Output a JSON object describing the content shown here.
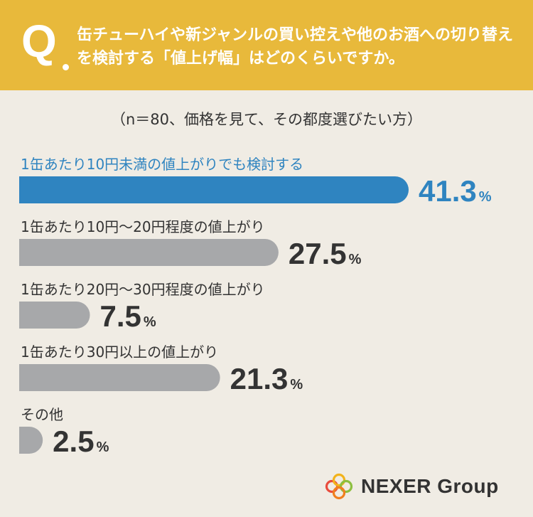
{
  "header": {
    "q_mark": "Q",
    "question": "缶チューハイや新ジャンルの買い控えや他のお酒への切り替えを検討する「値上げ幅」はどのくらいですか。"
  },
  "subtitle": "（n＝80、価格を見て、その都度選びたい方）",
  "colors": {
    "highlight": "#2f84c0",
    "bar": "#a7a8aa",
    "header_bg": "#e8b93b",
    "background": "#f0ece4"
  },
  "chart_data": {
    "type": "bar",
    "orientation": "horizontal",
    "categories": [
      "1缶あたり10円未満の値上がりでも検討する",
      "1缶あたり10円～20円程度の値上がり",
      "1缶あたり20円～30円程度の値上がり",
      "1缶あたり30円以上の値上がり",
      "その他"
    ],
    "values": [
      41.3,
      27.5,
      7.5,
      21.3,
      2.5
    ],
    "value_labels": [
      "41.3",
      "27.5",
      "7.5",
      "21.3",
      "2.5"
    ],
    "unit": "%",
    "highlight_index": 0,
    "xlim": [
      0,
      41.3
    ]
  },
  "logo": {
    "text": "NEXER Group",
    "icon": "four-rings-logo"
  }
}
